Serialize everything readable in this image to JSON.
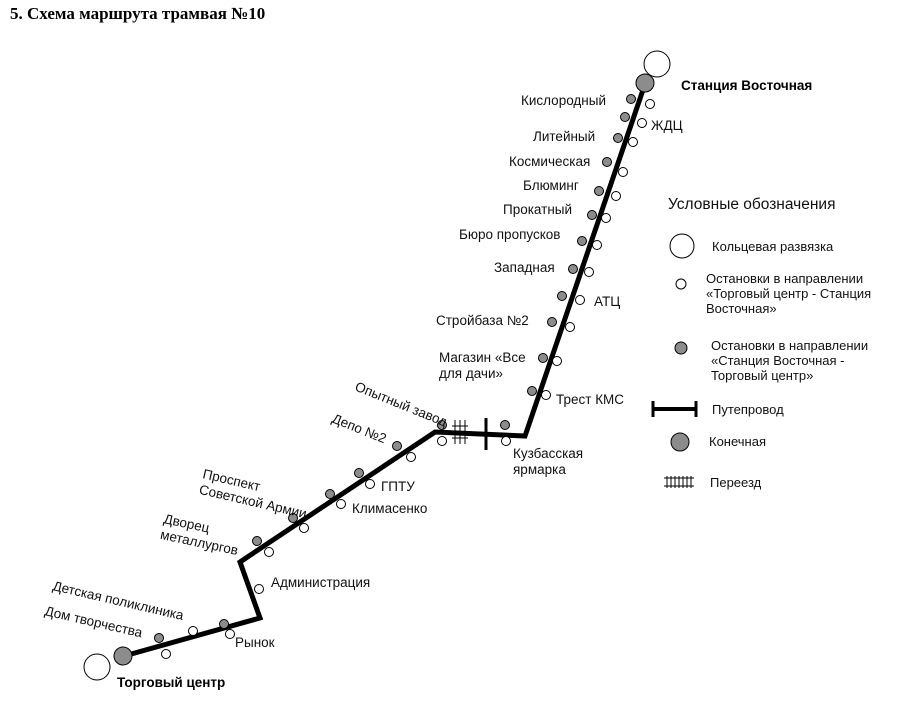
{
  "title": "5. Схема маршрута трамвая №10",
  "terminals": {
    "east": "Станция Восточная",
    "west": "Торговый центр"
  },
  "stops": [
    {
      "id": "kislorodny",
      "name": "Кислородный"
    },
    {
      "id": "zhdc",
      "name": "ЖДЦ"
    },
    {
      "id": "liteyny",
      "name": "Литейный"
    },
    {
      "id": "kosmicheskaya",
      "name": "Космическая"
    },
    {
      "id": "bluming",
      "name": "Блюминг"
    },
    {
      "id": "prokatny",
      "name": "Прокатный"
    },
    {
      "id": "byuro",
      "name": "Бюро пропусков"
    },
    {
      "id": "zapadnaya",
      "name": "Западная"
    },
    {
      "id": "atc",
      "name": "АТЦ"
    },
    {
      "id": "stroybaza",
      "name": "Стройбаза №2"
    },
    {
      "id": "magazin",
      "name": "Магазин «Все\nдля дачи»"
    },
    {
      "id": "trest",
      "name": "Трест КМС"
    },
    {
      "id": "opytny",
      "name": "Опытный завод"
    },
    {
      "id": "kuzbass",
      "name": "Кузбасская\nярмарка"
    },
    {
      "id": "depo",
      "name": "Депо №2"
    },
    {
      "id": "gptu",
      "name": "ГПТУ"
    },
    {
      "id": "prospekt",
      "name": "Проспект\nСоветской Армии"
    },
    {
      "id": "klimasenko",
      "name": "Климасенко"
    },
    {
      "id": "dvorec",
      "name": "Дворец\nметаллургов"
    },
    {
      "id": "administraciya",
      "name": "Администрация"
    },
    {
      "id": "detskaya",
      "name": "Детская поликлиника"
    },
    {
      "id": "dom",
      "name": "Дом творчества"
    },
    {
      "id": "rynok",
      "name": "Рынок"
    }
  ],
  "legend": {
    "heading": "Условные обозначения",
    "items": [
      {
        "symbol": "ring",
        "text": "Кольцевая развязка"
      },
      {
        "symbol": "stop-white",
        "text": "Остановки в направлении\n«Торговый центр - Станция\nВосточная»"
      },
      {
        "symbol": "stop-gray",
        "text": "Остановки в направлении\n«Станция Восточная -\nТорговый центр»"
      },
      {
        "symbol": "overpass",
        "text": "Путепровод"
      },
      {
        "symbol": "terminal",
        "text": "Конечная"
      },
      {
        "symbol": "crossing",
        "text": "Переезд"
      }
    ]
  },
  "colors": {
    "line": "#000000",
    "gray_stop": "#8c8c8c",
    "white_stop": "#ffffff"
  }
}
